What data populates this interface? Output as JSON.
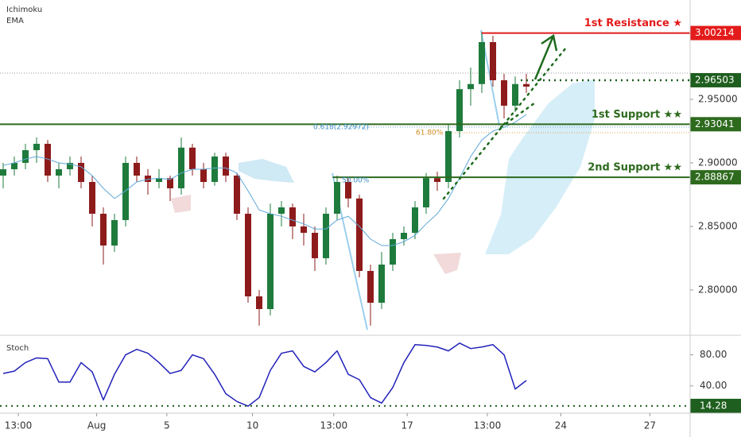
{
  "indicators": [
    "Ichimoku",
    "EMA"
  ],
  "chart_data": [
    {
      "type": "candlestick",
      "open": [
        2.89,
        2.895,
        2.9,
        2.91,
        2.915,
        2.89,
        2.895,
        2.9,
        2.885,
        2.86,
        2.835,
        2.855,
        2.9,
        2.89,
        2.885,
        2.888,
        2.88,
        2.912,
        2.895,
        2.885,
        2.905,
        2.89,
        2.86,
        2.795,
        2.785,
        2.86,
        2.865,
        2.85,
        2.845,
        2.825,
        2.86,
        2.885,
        2.872,
        2.815,
        2.79,
        2.82,
        2.84,
        2.845,
        2.865,
        2.888,
        2.885,
        2.925,
        2.958,
        2.962,
        2.995,
        2.965,
        2.945,
        2.962
      ],
      "high": [
        2.9,
        2.905,
        2.915,
        2.92,
        2.918,
        2.9,
        2.905,
        2.905,
        2.89,
        2.865,
        2.86,
        2.905,
        2.905,
        2.895,
        2.895,
        2.89,
        2.92,
        2.915,
        2.9,
        2.908,
        2.908,
        2.892,
        2.865,
        2.8,
        2.868,
        2.87,
        2.868,
        2.86,
        2.85,
        2.865,
        2.89,
        2.888,
        2.875,
        2.82,
        2.83,
        2.845,
        2.85,
        2.87,
        2.892,
        2.893,
        2.93,
        2.965,
        2.975,
        3.003,
        3.0,
        2.97,
        2.968,
        2.97
      ],
      "low": [
        2.88,
        2.89,
        2.895,
        2.9,
        2.885,
        2.88,
        2.89,
        2.88,
        2.85,
        2.82,
        2.83,
        2.85,
        2.885,
        2.875,
        2.88,
        2.87,
        2.875,
        2.89,
        2.88,
        2.882,
        2.885,
        2.855,
        2.79,
        2.772,
        2.78,
        2.85,
        2.84,
        2.835,
        2.815,
        2.82,
        2.855,
        2.865,
        2.81,
        2.772,
        2.785,
        2.815,
        2.835,
        2.84,
        2.86,
        2.878,
        2.88,
        2.92,
        2.945,
        2.955,
        2.96,
        2.935,
        2.94,
        2.955
      ],
      "close": [
        2.895,
        2.9,
        2.91,
        2.915,
        2.89,
        2.895,
        2.9,
        2.885,
        2.86,
        2.835,
        2.855,
        2.9,
        2.89,
        2.885,
        2.888,
        2.88,
        2.912,
        2.895,
        2.885,
        2.905,
        2.89,
        2.86,
        2.795,
        2.785,
        2.86,
        2.865,
        2.85,
        2.845,
        2.825,
        2.86,
        2.885,
        2.872,
        2.815,
        2.79,
        2.82,
        2.84,
        2.845,
        2.865,
        2.888,
        2.885,
        2.925,
        2.958,
        2.962,
        2.995,
        2.965,
        2.945,
        2.962,
        2.96
      ],
      "up_color": "#1e7b3c",
      "down_color": "#8e1b1b",
      "series": [
        {
          "name": "EMA",
          "color": "#5fa8d8",
          "values": [
            2.898,
            2.9,
            2.903,
            2.905,
            2.903,
            2.9,
            2.899,
            2.897,
            2.89,
            2.88,
            2.872,
            2.878,
            2.885,
            2.887,
            2.888,
            2.887,
            2.892,
            2.895,
            2.895,
            2.896,
            2.896,
            2.892,
            2.878,
            2.863,
            2.86,
            2.858,
            2.855,
            2.852,
            2.848,
            2.848,
            2.855,
            2.858,
            2.85,
            2.84,
            2.835,
            2.835,
            2.838,
            2.843,
            2.852,
            2.86,
            2.872,
            2.888,
            2.905,
            2.918,
            2.925,
            2.928,
            2.932,
            2.938
          ]
        }
      ],
      "ylim": [
        2.765625,
        3.028125
      ],
      "yticks": [
        {
          "value": 2.8,
          "label": "2.80000"
        },
        {
          "value": 2.85,
          "label": "2.85000"
        },
        {
          "value": 2.9,
          "label": "2.90000"
        },
        {
          "value": 2.95,
          "label": "2.95000"
        }
      ],
      "xlim": [
        -0.2857,
        61.714
      ],
      "xticks": [
        {
          "value": 1.36,
          "label": "13:00"
        },
        {
          "value": 8.4,
          "label": "Aug"
        },
        {
          "value": 14.7,
          "label": "5"
        },
        {
          "value": 22.4,
          "label": "10"
        },
        {
          "value": 29.7,
          "label": "13:00"
        },
        {
          "value": 36.3,
          "label": "17"
        },
        {
          "value": 43.5,
          "label": "13:00"
        },
        {
          "value": 50.1,
          "label": "24"
        },
        {
          "value": 58.1,
          "label": "27"
        }
      ],
      "levels": [
        {
          "value": 3.00214,
          "name": "1st Resistance ★",
          "color": "#e31b1b",
          "from": 43
        },
        {
          "value": 2.96503,
          "color": "#1e5e1e",
          "from": 46.5,
          "dotted": true
        },
        {
          "value": 2.93041,
          "name": "1st Support ★★",
          "color": "#2d6a1d",
          "from": -0.3
        },
        {
          "value": 2.88867,
          "name": "2nd Support ★★",
          "color": "#2d6a1d",
          "from": 29.6
        }
      ],
      "annotations": [
        "0.618(2.92972)",
        "61.80%",
        "50.00%"
      ]
    },
    {
      "type": "line",
      "title": "Stoch",
      "series": [
        {
          "name": "Stoch",
          "color": "#2222bb",
          "values": [
            56,
            59,
            70,
            76,
            75,
            45,
            45,
            70,
            58,
            22,
            55,
            80,
            87,
            82,
            70,
            56,
            60,
            80,
            75,
            55,
            30,
            20,
            14,
            25,
            60,
            82,
            85,
            65,
            58,
            70,
            85,
            55,
            48,
            25,
            18,
            38,
            70,
            93,
            92,
            90,
            85,
            95,
            88,
            90,
            93,
            80,
            36,
            47
          ]
        }
      ],
      "ylim": [
        5,
        103
      ],
      "yticks": [
        {
          "value": 80,
          "label": "80.00"
        },
        {
          "value": 40,
          "label": "40.00"
        }
      ],
      "level": {
        "value": 14.28,
        "color": "#1e5e1e"
      }
    }
  ]
}
